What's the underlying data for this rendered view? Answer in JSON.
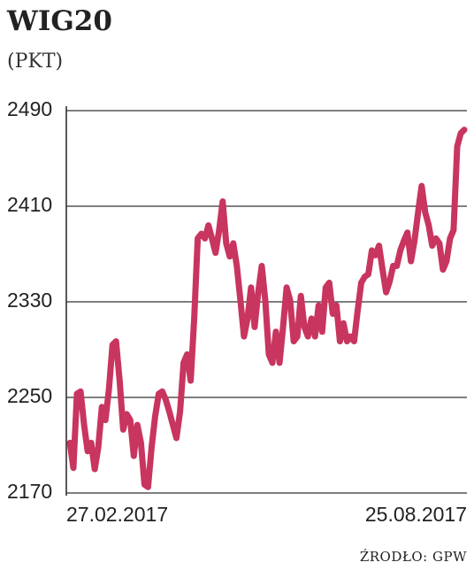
{
  "chart_data": {
    "type": "line",
    "title": "WIG20",
    "subtitle": "(PKT)",
    "source": "ŹRODŁO: GPW",
    "categories": [
      "27.02.2017",
      null,
      null,
      null,
      null,
      null,
      null,
      null,
      null,
      null,
      null,
      null,
      null,
      null,
      null,
      null,
      null,
      null,
      null,
      null,
      null,
      null,
      null,
      null,
      null,
      null,
      null,
      null,
      null,
      null,
      null,
      null,
      null,
      null,
      null,
      null,
      null,
      null,
      null,
      null,
      null,
      null,
      null,
      null,
      null,
      null,
      null,
      null,
      null,
      null,
      null,
      null,
      null,
      null,
      null,
      null,
      null,
      null,
      null,
      null,
      null,
      null,
      null,
      null,
      null,
      null,
      null,
      null,
      null,
      null,
      null,
      null,
      null,
      null,
      null,
      null,
      null,
      null,
      null,
      null,
      null,
      null,
      null,
      null,
      null,
      null,
      null,
      null,
      null,
      null,
      null,
      null,
      null,
      null,
      null,
      null,
      null,
      null,
      null,
      null,
      null,
      null,
      null,
      null,
      null,
      null,
      null,
      null,
      null,
      null,
      null,
      "25.08.2017"
    ],
    "series": [
      {
        "name": "WIG20",
        "color": "#c8355f",
        "values": [
          2212,
          2191,
          2253,
          2255,
          2227,
          2205,
          2212,
          2190,
          2208,
          2242,
          2231,
          2257,
          2294,
          2297,
          2264,
          2223,
          2236,
          2231,
          2201,
          2227,
          2212,
          2177,
          2175,
          2208,
          2234,
          2253,
          2255,
          2248,
          2238,
          2227,
          2216,
          2238,
          2279,
          2286,
          2264,
          2316,
          2383,
          2387,
          2383,
          2394,
          2383,
          2371,
          2390,
          2414,
          2379,
          2368,
          2379,
          2360,
          2331,
          2301,
          2316,
          2342,
          2309,
          2338,
          2360,
          2331,
          2286,
          2279,
          2305,
          2279,
          2309,
          2342,
          2331,
          2297,
          2301,
          2335,
          2309,
          2301,
          2316,
          2301,
          2327,
          2305,
          2342,
          2346,
          2320,
          2327,
          2297,
          2312,
          2297,
          2301,
          2297,
          2323,
          2346,
          2351,
          2353,
          2373,
          2369,
          2377,
          2357,
          2338,
          2347,
          2360,
          2360,
          2373,
          2381,
          2388,
          2364,
          2381,
          2405,
          2427,
          2405,
          2394,
          2377,
          2383,
          2379,
          2357,
          2364,
          2383,
          2390,
          2460,
          2471,
          2474
        ]
      }
    ],
    "ylim": [
      2170,
      2490
    ],
    "yticks": [
      2170,
      2250,
      2330,
      2410,
      2490
    ],
    "grid": true
  }
}
